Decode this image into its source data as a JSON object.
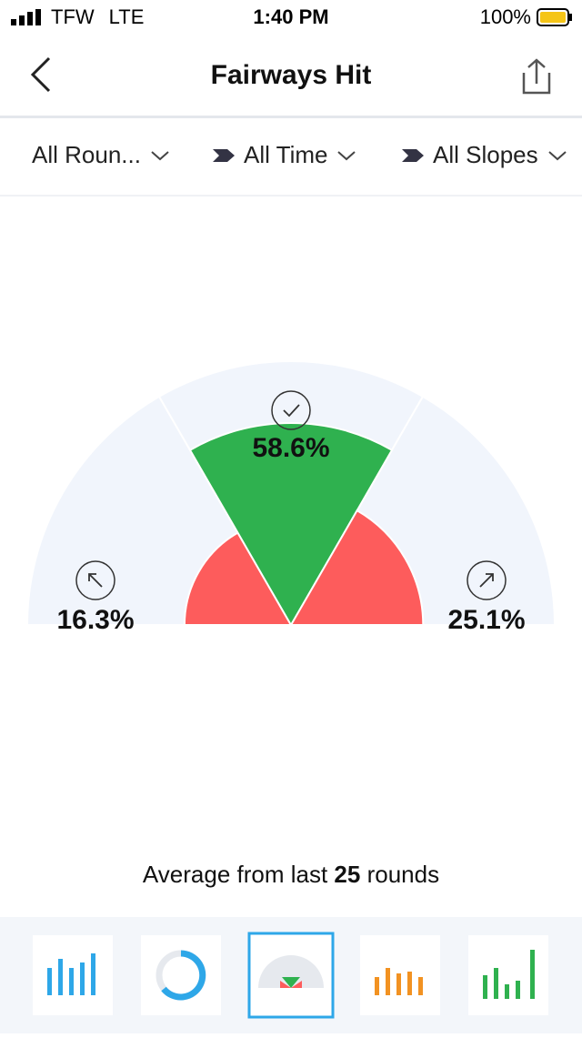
{
  "status_bar": {
    "carrier": "TFW",
    "network": "LTE",
    "time": "1:40 PM",
    "battery": "100%"
  },
  "header": {
    "title": "Fairways Hit"
  },
  "filters": [
    "All Roun...",
    "All Time",
    "All Slopes"
  ],
  "chart_data": {
    "type": "polar-area",
    "categories": [
      "Left",
      "Hit",
      "Right"
    ],
    "values": [
      16.3,
      58.6,
      25.1
    ],
    "value_labels": [
      "16.3%",
      "58.6%",
      "25.1%"
    ],
    "colors": [
      "#fd5c5c",
      "#2fb14f",
      "#fd5c5c"
    ],
    "rlim": [
      0,
      100
    ]
  },
  "footer": {
    "prefix": "Average from last",
    "count": "25",
    "suffix": "rounds"
  }
}
